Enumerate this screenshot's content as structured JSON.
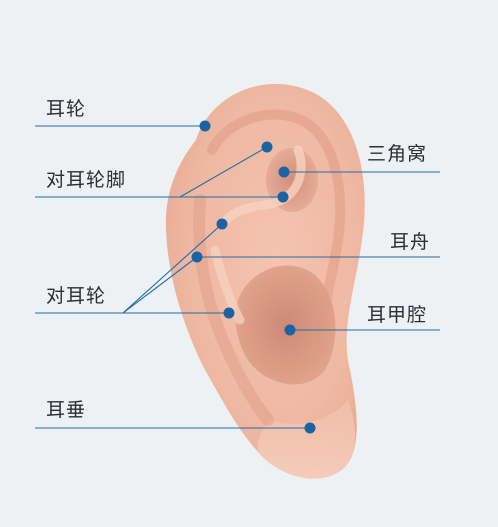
{
  "labels": {
    "helix": "耳轮",
    "crura_of_antihelix": "对耳轮脚",
    "antihelix": "对耳轮",
    "earlobe": "耳垂",
    "triangular_fossa": "三角窝",
    "scapha": "耳舟",
    "cavum_conchae": "耳甲腔"
  },
  "colors": {
    "background": "#eef1f3",
    "leader_line": "#1f6fa8",
    "marker": "#1c63a6",
    "label_text": "#2a2f34"
  }
}
